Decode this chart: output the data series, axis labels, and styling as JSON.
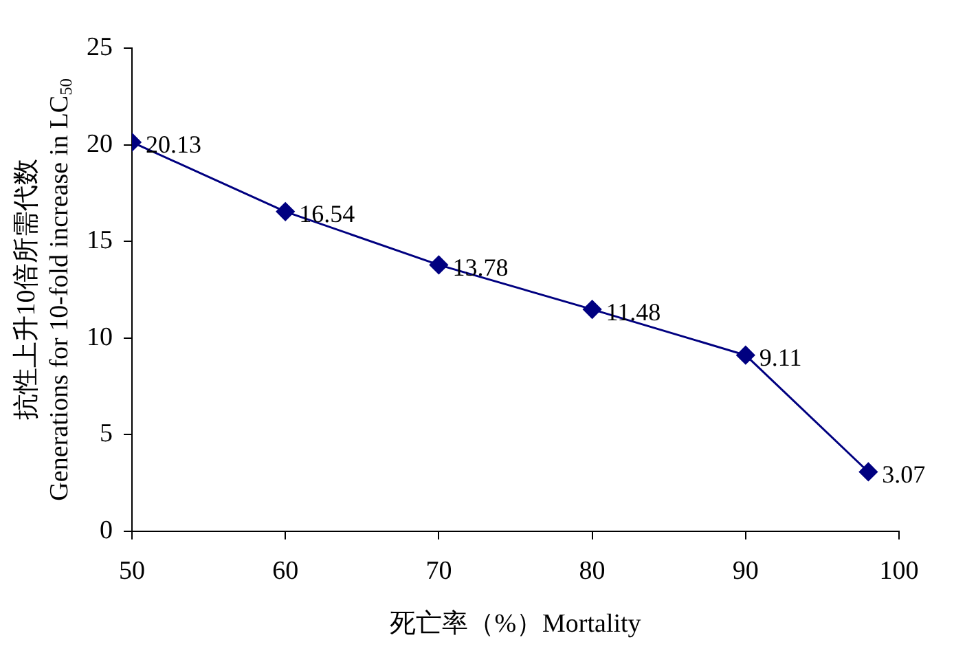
{
  "chart_data": {
    "type": "line",
    "xlabel": "死亡率（%）Mortality",
    "ylabel": [
      "抗性上升10倍所需代数",
      "Generations for 10-fold increase in LC$_{50}$"
    ],
    "x": [
      50,
      60,
      70,
      80,
      90,
      98
    ],
    "series": [
      {
        "color": "#000080",
        "values": [
          20.13,
          16.54,
          13.78,
          11.48,
          9.11,
          3.07
        ]
      }
    ],
    "xlim": [
      50,
      100
    ],
    "xticks": [
      50,
      60,
      70,
      80,
      90,
      100
    ],
    "ylim": [
      0,
      25
    ],
    "yticks": [
      0,
      5,
      10,
      15,
      20,
      25
    ],
    "grid": false,
    "legend": false,
    "marker": "diamond",
    "line_style": "solid",
    "data_labels": true
  }
}
